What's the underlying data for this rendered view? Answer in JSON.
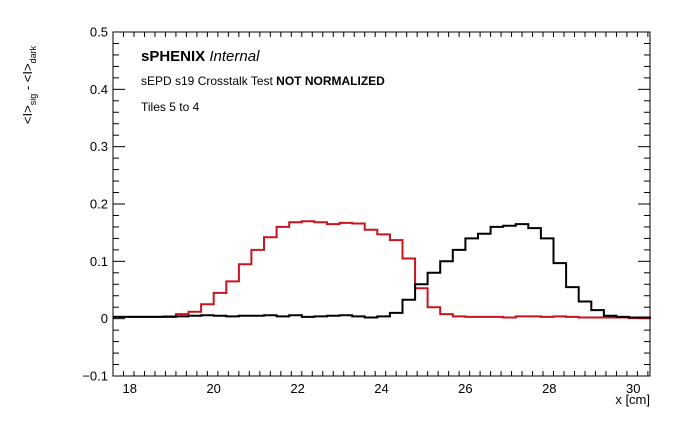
{
  "chart_data": {
    "type": "line",
    "step": true,
    "annotations": {
      "line1_bold": "sPHENIX",
      "line1_italic": "Internal",
      "line2_normal": "sEPD s19 Crosstalk Test",
      "line2_bold": "NOT NORMALIZED",
      "line3": "Tiles 5 to 4"
    },
    "ylabel": {
      "a": "<I>",
      "a_sub": "sig",
      "mid": " - ",
      "b": "<I>",
      "b_sub": "dark"
    },
    "xlabel": "x [cm]",
    "xlim": [
      17.6,
      30.4
    ],
    "ylim": [
      -0.1,
      0.5
    ],
    "xticks": [
      18,
      20,
      22,
      24,
      26,
      28,
      30
    ],
    "xtick_labels": [
      "18",
      "20",
      "22",
      "24",
      "26",
      "28",
      "30"
    ],
    "yticks": [
      -0.1,
      0,
      0.1,
      0.2,
      0.3,
      0.4,
      0.5
    ],
    "ytick_labels": [
      "−0.1",
      "0",
      "0.1",
      "0.2",
      "0.3",
      "0.4",
      "0.5"
    ],
    "bin_edges": [
      17.6,
      17.9,
      18.2,
      18.5,
      18.8,
      19.1,
      19.4,
      19.7,
      20.0,
      20.3,
      20.6,
      20.9,
      21.2,
      21.5,
      21.8,
      22.1,
      22.4,
      22.7,
      23.0,
      23.3,
      23.6,
      23.9,
      24.2,
      24.5,
      24.8,
      25.1,
      25.4,
      25.7,
      26.0,
      26.3,
      26.6,
      26.9,
      27.2,
      27.5,
      27.8,
      28.1,
      28.4,
      28.7,
      29.0,
      29.3,
      29.6,
      29.9,
      30.2,
      30.4
    ],
    "series": [
      {
        "color": "#c8141e",
        "values": [
          0.003,
          0.003,
          0.003,
          0.003,
          0.004,
          0.008,
          0.012,
          0.025,
          0.045,
          0.065,
          0.095,
          0.12,
          0.142,
          0.16,
          0.168,
          0.17,
          0.168,
          0.165,
          0.167,
          0.166,
          0.155,
          0.147,
          0.137,
          0.105,
          0.053,
          0.02,
          0.008,
          0.004,
          0.003,
          0.003,
          0.003,
          0.002,
          0.004,
          0.004,
          0.003,
          0.004,
          0.003,
          0.002,
          0.002,
          0.002,
          0.002,
          0.001,
          0.001,
          0.0
        ]
      },
      {
        "color": "#000000",
        "values": [
          0.003,
          0.003,
          0.003,
          0.003,
          0.003,
          0.004,
          0.005,
          0.006,
          0.005,
          0.004,
          0.005,
          0.005,
          0.006,
          0.004,
          0.006,
          0.003,
          0.004,
          0.005,
          0.006,
          0.004,
          0.002,
          0.004,
          0.01,
          0.033,
          0.06,
          0.08,
          0.1,
          0.12,
          0.14,
          0.148,
          0.16,
          0.162,
          0.165,
          0.158,
          0.14,
          0.097,
          0.055,
          0.03,
          0.015,
          0.005,
          0.003,
          0.002,
          0.002,
          0.0
        ]
      }
    ]
  }
}
